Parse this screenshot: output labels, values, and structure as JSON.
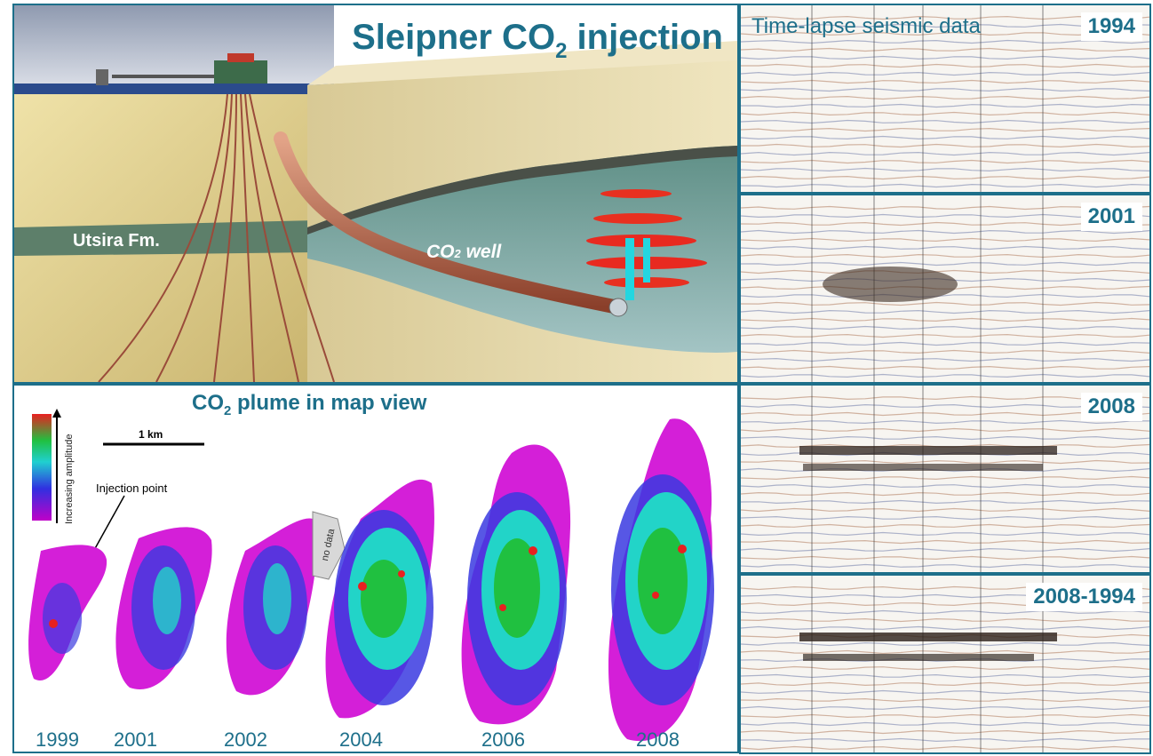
{
  "main_title": {
    "text": "Sleipner CO",
    "sub": "2",
    "suffix": " injection"
  },
  "top_labels": {
    "formation": "Utsira Fm.",
    "well_prefix": "CO",
    "well_sub": "2",
    "well_suffix": " well"
  },
  "seismic": {
    "title": "Time-lapse seismic data",
    "panels": [
      {
        "label": "1994"
      },
      {
        "label": "2001"
      },
      {
        "label": "2008"
      },
      {
        "label": "2008-1994"
      }
    ]
  },
  "map_view": {
    "title_prefix": "CO",
    "title_sub": "2",
    "title_suffix": " plume in map view",
    "scale_label": "1 km",
    "legend_label": "Increasing amplitude",
    "injection_label": "Injection point",
    "no_data_label": "no data",
    "years": [
      "1999",
      "2001",
      "2002",
      "2004",
      "2006",
      "2008"
    ]
  },
  "colors": {
    "accent": "#1d6f8a",
    "plume_outer": "#d41fd8",
    "plume_mid": "#3a3ae0",
    "plume_core": "#22d4c8",
    "plume_hot": "#e8e020",
    "plume_peak": "#e82020"
  }
}
